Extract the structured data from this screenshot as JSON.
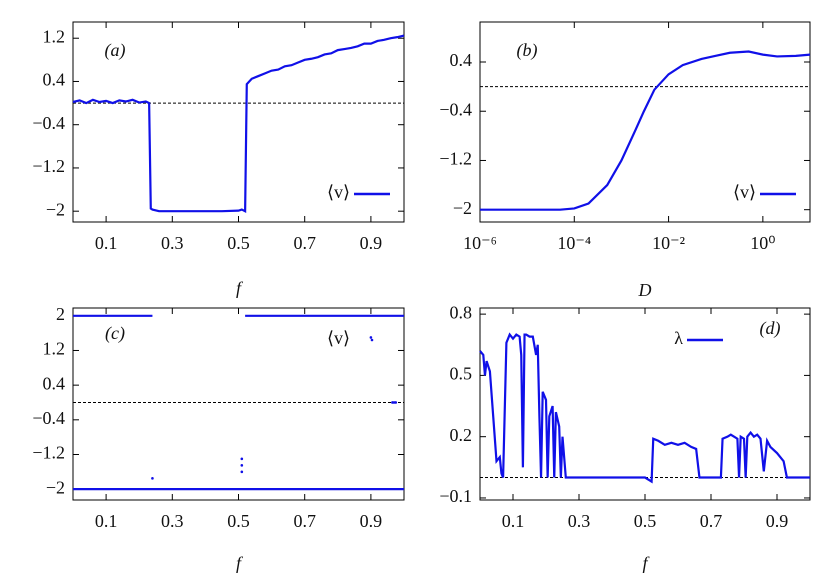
{
  "chart_data": [
    {
      "type": "line",
      "label": "(a)",
      "xlabel": "f",
      "xlim": [
        0,
        1
      ],
      "ylim": [
        -2.2,
        1.5
      ],
      "xticks": [
        0.1,
        0.3,
        0.5,
        0.7,
        0.9
      ],
      "yticks": [
        {
          "value": -2,
          "label": "−2"
        },
        {
          "value": -1.2,
          "label": "−1.2"
        },
        {
          "value": -0.4,
          "label": "−0.4"
        },
        0.4,
        1.2
      ],
      "refline": 0,
      "legend": "lower right",
      "series": [
        {
          "name": "⟨v⟩",
          "color": "#1010e8",
          "draw": "line",
          "x": [
            0,
            0.02,
            0.04,
            0.06,
            0.08,
            0.1,
            0.12,
            0.14,
            0.16,
            0.18,
            0.2,
            0.22,
            0.23,
            0.235,
            0.24,
            0.26,
            0.3,
            0.35,
            0.4,
            0.45,
            0.5,
            0.51,
            0.52,
            0.525,
            0.54,
            0.56,
            0.58,
            0.6,
            0.62,
            0.64,
            0.66,
            0.68,
            0.7,
            0.72,
            0.74,
            0.76,
            0.78,
            0.8,
            0.82,
            0.84,
            0.86,
            0.88,
            0.9,
            0.92,
            0.94,
            0.96,
            0.98,
            1.0
          ],
          "values": [
            0.02,
            0.05,
            0.0,
            0.06,
            0.02,
            0.04,
            0.0,
            0.05,
            0.03,
            0.06,
            0.01,
            0.03,
            0.0,
            -1.95,
            -1.97,
            -2,
            -2,
            -2,
            -2,
            -2,
            -1.99,
            -1.97,
            -2.0,
            0.35,
            0.45,
            0.5,
            0.55,
            0.6,
            0.62,
            0.68,
            0.7,
            0.75,
            0.8,
            0.82,
            0.85,
            0.9,
            0.92,
            0.98,
            1.0,
            1.02,
            1.05,
            1.1,
            1.1,
            1.15,
            1.17,
            1.2,
            1.22,
            1.25
          ]
        }
      ]
    },
    {
      "type": "line",
      "label": "(b)",
      "xlabel": "D",
      "xscale": "log",
      "xlim": [
        1e-06,
        10
      ],
      "ylim": [
        -2.2,
        1.05
      ],
      "xticks": [
        {
          "value": 1e-06,
          "label": "10⁻⁶"
        },
        {
          "value": 0.0001,
          "label": "10⁻⁴"
        },
        {
          "value": 0.01,
          "label": "10⁻²"
        },
        {
          "value": 1,
          "label": "10⁰"
        }
      ],
      "yticks": [
        {
          "value": -2,
          "label": "−2"
        },
        {
          "value": -1.2,
          "label": "−1.2"
        },
        {
          "value": -0.4,
          "label": "−0.4"
        },
        0.4
      ],
      "refline": 0,
      "legend": "lower right",
      "series": [
        {
          "name": "⟨v⟩",
          "color": "#1010e8",
          "draw": "line",
          "x": [
            1e-06,
            1e-05,
            5e-05,
            0.0001,
            0.0002,
            0.0005,
            0.001,
            0.002,
            0.003,
            0.005,
            0.01,
            0.02,
            0.05,
            0.1,
            0.2,
            0.5,
            1,
            2,
            5,
            10
          ],
          "values": [
            -2,
            -2,
            -2,
            -1.98,
            -1.9,
            -1.6,
            -1.2,
            -0.7,
            -0.4,
            -0.05,
            0.2,
            0.35,
            0.45,
            0.5,
            0.55,
            0.57,
            0.52,
            0.49,
            0.5,
            0.52
          ]
        }
      ]
    },
    {
      "type": "scatter",
      "label": "(c)",
      "xlabel": "f",
      "xlim": [
        0,
        1
      ],
      "ylim": [
        -2.25,
        2.18
      ],
      "xticks": [
        0.1,
        0.3,
        0.5,
        0.7,
        0.9
      ],
      "yticks": [
        {
          "value": -2,
          "label": "−2"
        },
        {
          "value": -1.2,
          "label": "−1.2"
        },
        {
          "value": -0.4,
          "label": "−0.4"
        },
        0.4,
        1.2,
        2
      ],
      "refline": 0,
      "legend": "upper right",
      "series": [
        {
          "color": "#1010e8",
          "draw": "line",
          "x": [
            0,
            0.24,
            0.3,
            0.52,
            1.0
          ],
          "values": [
            2,
            2,
            null,
            2,
            2
          ]
        },
        {
          "color": "#1010e8",
          "draw": "line",
          "x": [
            0,
            1.0
          ],
          "values": [
            -2,
            -2
          ]
        },
        {
          "name": "⟨v⟩",
          "color": "#1010e8",
          "draw": "points",
          "x": [
            0.24,
            0.51,
            0.51,
            0.51,
            0.9,
            0.965,
            0.97,
            0.975
          ],
          "values": [
            -1.75,
            -1.6,
            -1.45,
            -1.3,
            1.5,
            0.0,
            0.0,
            0.0
          ]
        }
      ]
    },
    {
      "type": "line",
      "label": "(d)",
      "xlabel": "f",
      "xlim": [
        0,
        1
      ],
      "ylim": [
        -0.11,
        0.83
      ],
      "xticks": [
        0.1,
        0.3,
        0.5,
        0.7,
        0.9
      ],
      "yticks": [
        {
          "value": -0.1,
          "label": "−0.1"
        },
        0.2,
        0.5,
        0.8
      ],
      "refline": 0,
      "legend": "upper right",
      "series": [
        {
          "name": "λ",
          "color": "#1010e8",
          "draw": "line",
          "x": [
            0,
            0.01,
            0.015,
            0.02,
            0.03,
            0.04,
            0.05,
            0.06,
            0.065,
            0.07,
            0.08,
            0.09,
            0.1,
            0.11,
            0.12,
            0.125,
            0.13,
            0.135,
            0.14,
            0.15,
            0.16,
            0.17,
            0.175,
            0.18,
            0.185,
            0.19,
            0.2,
            0.205,
            0.21,
            0.22,
            0.225,
            0.23,
            0.24,
            0.245,
            0.25,
            0.26,
            0.3,
            0.4,
            0.5,
            0.52,
            0.525,
            0.54,
            0.56,
            0.58,
            0.6,
            0.62,
            0.64,
            0.655,
            0.665,
            0.7,
            0.73,
            0.735,
            0.75,
            0.76,
            0.77,
            0.78,
            0.785,
            0.79,
            0.8,
            0.805,
            0.81,
            0.82,
            0.83,
            0.84,
            0.85,
            0.86,
            0.87,
            0.88,
            0.9,
            0.92,
            0.93,
            0.95,
            0.97,
            1.0
          ],
          "values": [
            0.62,
            0.6,
            0.5,
            0.57,
            0.52,
            0.3,
            0.08,
            0.1,
            0.02,
            0.0,
            0.66,
            0.7,
            0.68,
            0.7,
            0.69,
            0.6,
            0.05,
            0.7,
            0.7,
            0.69,
            0.69,
            0.6,
            0.65,
            0.3,
            0.0,
            0.42,
            0.38,
            0.0,
            0.3,
            0.35,
            0.0,
            0.32,
            0.25,
            0.0,
            0.2,
            0.0,
            0.0,
            0.0,
            0.0,
            -0.02,
            0.19,
            0.18,
            0.16,
            0.17,
            0.16,
            0.17,
            0.15,
            0.14,
            0.0,
            0.0,
            0.0,
            0.19,
            0.2,
            0.21,
            0.2,
            0.19,
            0.0,
            0.2,
            0.19,
            0.0,
            0.2,
            0.22,
            0.2,
            0.21,
            0.19,
            0.03,
            0.18,
            0.15,
            0.12,
            0.08,
            0.0,
            0.0,
            0.0,
            0.0
          ]
        }
      ]
    }
  ]
}
